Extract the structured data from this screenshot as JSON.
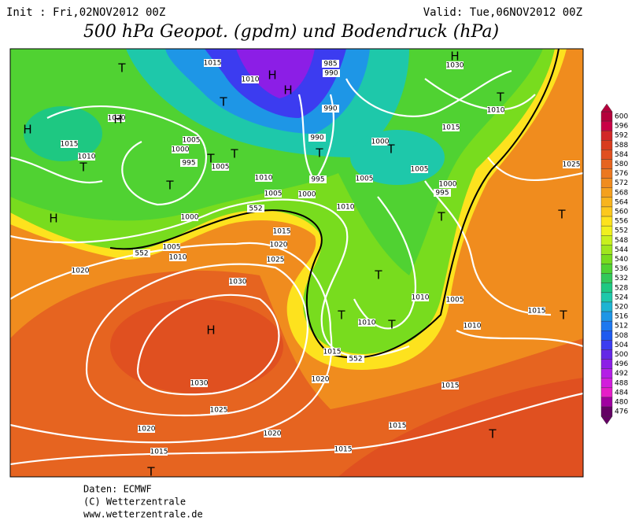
{
  "header": {
    "init": "Init : Fri,02NOV2012 00Z",
    "valid": "Valid: Tue,06NOV2012 00Z",
    "title": "500 hPa Geopot. (gpdm) und Bodendruck (hPa)"
  },
  "colorbar": {
    "labels": [
      "600",
      "596",
      "592",
      "588",
      "584",
      "580",
      "576",
      "572",
      "568",
      "564",
      "560",
      "556",
      "552",
      "548",
      "544",
      "540",
      "536",
      "532",
      "528",
      "524",
      "520",
      "516",
      "512",
      "508",
      "504",
      "500",
      "496",
      "492",
      "488",
      "484",
      "480",
      "476"
    ]
  },
  "map": {
    "isobar_labels": [
      "1015",
      "1010",
      "985",
      "990",
      "990",
      "1030",
      "1010",
      "1015",
      "1020",
      "1015",
      "1010",
      "1005",
      "1000",
      "995",
      "1005",
      "990",
      "1000",
      "1005",
      "995",
      "1010",
      "1005",
      "1000",
      "1005",
      "1000",
      "995",
      "1025",
      "1010",
      "1000",
      "1015",
      "1020",
      "1025",
      "1005",
      "1010",
      "1020",
      "1030",
      "1010",
      "1005",
      "1015",
      "1010",
      "1010",
      "1015",
      "1020",
      "1015",
      "1030",
      "1025",
      "1015",
      "1020",
      "1020",
      "1015",
      "1015",
      "552",
      "552",
      "552"
    ],
    "centers": [
      "H",
      "H",
      "H",
      "H",
      "H",
      "H",
      "H",
      "T",
      "T",
      "T",
      "T",
      "T",
      "T",
      "T",
      "T",
      "T",
      "T",
      "T",
      "T",
      "T",
      "T",
      "T",
      "T",
      "T"
    ]
  },
  "footer": {
    "source": "Daten: ECMWF",
    "copyright": "(C) Wetterzentrale",
    "url": "www.wetterzentrale.de"
  }
}
